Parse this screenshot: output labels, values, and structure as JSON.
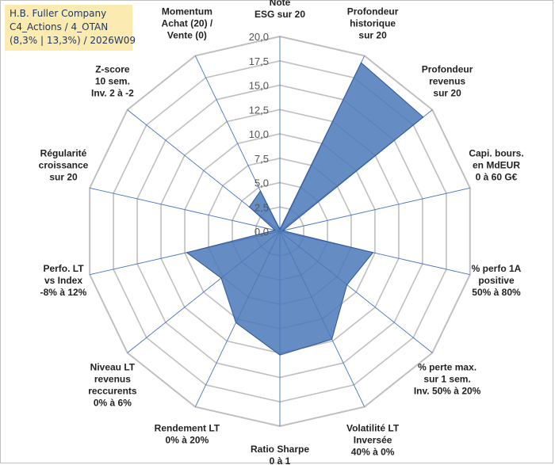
{
  "header": {
    "line1": "H.B. Fuller Company",
    "line2": "C4_Actions / 4_OTAN",
    "line3": "(8,3% | 13,3%) / 2026W09"
  },
  "colors": {
    "fill": "#4a78b8",
    "stroke": "#2f5597",
    "grid": "#bfbfbf",
    "spoke": "#4472c4",
    "box": "#fcebb1"
  },
  "chart_data": {
    "type": "radar",
    "rmin": 0,
    "rmax": 20,
    "tick_step": 2.5,
    "tick_labels": [
      "0,0",
      "2,5",
      "5,0",
      "7,5",
      "10,0",
      "12,5",
      "15,0",
      "17,5",
      "20,0"
    ],
    "grid": true,
    "categories": [
      {
        "lines": [
          "Note",
          "ESG sur 20"
        ]
      },
      {
        "lines": [
          "Profondeur",
          "historique",
          "sur 20"
        ]
      },
      {
        "lines": [
          "Profondeur",
          "revenus",
          "sur 20"
        ]
      },
      {
        "lines": [
          "Capi. bours.",
          "en MdEUR",
          "0 à 60 G€"
        ]
      },
      {
        "lines": [
          "% perfo 1A",
          "positive",
          "50% à 80%"
        ]
      },
      {
        "lines": [
          "% perte max.",
          "sur 1 sem.",
          "Inv. 50% à 20%"
        ]
      },
      {
        "lines": [
          "Volatilité LT",
          "Inversée",
          "40% à 0%"
        ]
      },
      {
        "lines": [
          "Ratio Sharpe",
          "0 à 1"
        ]
      },
      {
        "lines": [
          "Rendement LT",
          "0% à 20%"
        ]
      },
      {
        "lines": [
          "Niveau LT",
          "revenus",
          "reccurents",
          "0% à 6%"
        ]
      },
      {
        "lines": [
          "Perfo. LT",
          "vs Index",
          "-8% à 12%"
        ]
      },
      {
        "lines": [
          "Régularité",
          "croissance",
          "sur 20"
        ]
      },
      {
        "lines": [
          "Z-score",
          "10 sem.",
          "Inv. 2 à -2"
        ]
      },
      {
        "lines": [
          "Momentum",
          "Achat (20) /",
          "Vente (0)"
        ]
      }
    ],
    "series": [
      {
        "values": [
          0.2,
          19.2,
          18.8,
          0.3,
          9.8,
          8.8,
          12.3,
          12.7,
          10.4,
          7.7,
          9.8,
          0.5,
          4.0,
          4.6
        ]
      }
    ]
  }
}
